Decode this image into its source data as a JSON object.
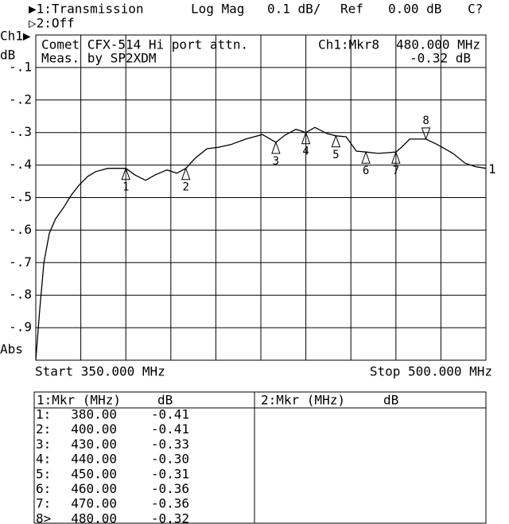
{
  "header": {
    "channel1": "▶1:Transmission",
    "format": "Log Mag",
    "scale": "0.1 dB/",
    "ref_label": "Ref",
    "ref_value": "0.00 dB",
    "status": "C?",
    "channel2": "▷2:Off",
    "channel_marker": "Ch1▶",
    "unit": "dB",
    "abs": "Abs"
  },
  "chart_data": {
    "type": "line",
    "title": "Comet CFX-514 Hi port attn.",
    "subtitle": "Meas. by SP2XDM",
    "active_marker": "Ch1:Mkr8",
    "active_marker_freq": "480.000 MHz",
    "active_marker_value": "-0.32 dB",
    "start_label": "Start 350.000 MHz",
    "stop_label": "Stop 500.000 MHz",
    "x": [
      350,
      351.3,
      352.7,
      354.5,
      356.6,
      359.3,
      362,
      364.6,
      367.3,
      370,
      374,
      380,
      383,
      386.6,
      389.8,
      393.7,
      397,
      400,
      403,
      407,
      411,
      415,
      420,
      425.5,
      430,
      433,
      436.7,
      440,
      443,
      447,
      450,
      453.4,
      456.8,
      460,
      464,
      467,
      470,
      471.9,
      474.6,
      480,
      483.8,
      489,
      493,
      496.5,
      500
    ],
    "values": [
      -1.0,
      -0.846,
      -0.7,
      -0.61,
      -0.565,
      -0.53,
      -0.49,
      -0.46,
      -0.435,
      -0.42,
      -0.41,
      -0.41,
      -0.43,
      -0.447,
      -0.43,
      -0.415,
      -0.425,
      -0.41,
      -0.38,
      -0.35,
      -0.345,
      -0.337,
      -0.32,
      -0.306,
      -0.33,
      -0.308,
      -0.29,
      -0.3,
      -0.284,
      -0.303,
      -0.31,
      -0.313,
      -0.357,
      -0.36,
      -0.364,
      -0.362,
      -0.36,
      -0.345,
      -0.32,
      -0.32,
      -0.337,
      -0.364,
      -0.394,
      -0.405,
      -0.41
    ],
    "color": "#000000",
    "xlim": [
      350,
      500
    ],
    "ylim": [
      -1,
      0
    ],
    "yticks": [
      {
        "value": -0.1,
        "label": "-.1"
      },
      {
        "value": -0.2,
        "label": "-.2"
      },
      {
        "value": -0.3,
        "label": "-.3"
      },
      {
        "value": -0.4,
        "label": "-.4"
      },
      {
        "value": -0.5,
        "label": "-.5"
      },
      {
        "value": -0.6,
        "label": "-.6"
      },
      {
        "value": -0.7,
        "label": "-.7"
      },
      {
        "value": -0.8,
        "label": "-.8"
      },
      {
        "value": -0.9,
        "label": "-.9"
      }
    ],
    "grid": true,
    "trace_end_label": "1",
    "markers": {
      "names": [
        "1",
        "2",
        "3",
        "4",
        "5",
        "6",
        "7",
        "8"
      ],
      "x": [
        380,
        400,
        430,
        440,
        450,
        460,
        470,
        480
      ],
      "values": [
        -0.41,
        -0.41,
        -0.33,
        -0.3,
        -0.31,
        -0.36,
        -0.36,
        -0.32
      ],
      "x_labels": [
        "380.00",
        "400.00",
        "430.00",
        "440.00",
        "450.00",
        "460.00",
        "470.00",
        "480.00"
      ],
      "value_labels": [
        "-0.41",
        "-0.41",
        "-0.33",
        "-0.30",
        "-0.31",
        "-0.36",
        "-0.36",
        "-0.32"
      ],
      "active": "8"
    }
  },
  "marker_table": {
    "left_title": "1:Mkr (MHz)",
    "left_unit": "dB",
    "right_title": "2:Mkr (MHz)",
    "right_unit": "dB",
    "row_prefixes": [
      "1:",
      "2:",
      "3:",
      "4:",
      "5:",
      "6:",
      "7:",
      "8>"
    ]
  }
}
